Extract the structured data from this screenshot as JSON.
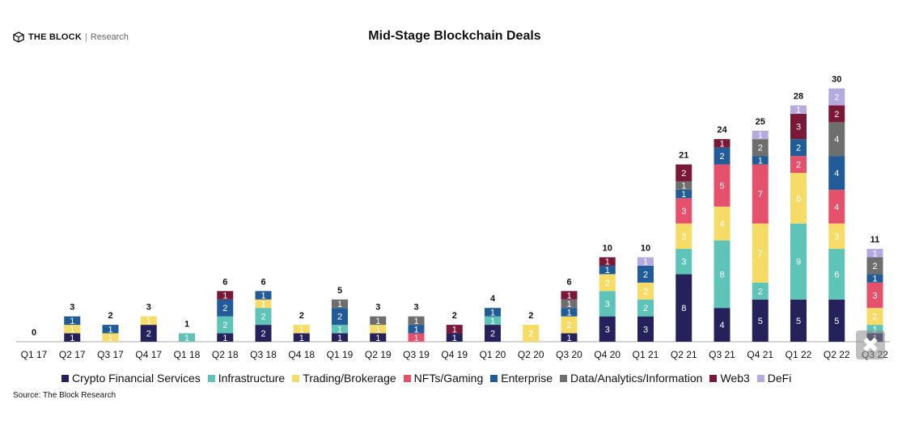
{
  "brand": {
    "name": "THE BLOCK",
    "separator": "|",
    "sub": "Research",
    "icon": "cube-logo-icon"
  },
  "source": "Source: The Block Research",
  "chart_data": {
    "type": "bar",
    "stacked": true,
    "title": "Mid-Stage Blockchain Deals",
    "categories": [
      "Q1 17",
      "Q2 17",
      "Q3 17",
      "Q4 17",
      "Q1 18",
      "Q2 18",
      "Q3 18",
      "Q4 18",
      "Q1 19",
      "Q2 19",
      "Q3 19",
      "Q4 19",
      "Q1 20",
      "Q2 20",
      "Q3 20",
      "Q4 20",
      "Q1 21",
      "Q2 21",
      "Q3 21",
      "Q4 21",
      "Q1 22",
      "Q2 22",
      "Q3 22"
    ],
    "tick_labels": [
      "Q1 17",
      "Q2 17",
      "Q3 17",
      "Q4 17",
      "Q1 18",
      "Q2 18",
      "Q3 18",
      "Q4 18",
      "Q1 19",
      "Q2 19",
      "Q3 19",
      "Q4 19",
      "Q1 20",
      "Q2 20",
      "Q3 20",
      "Q4 20",
      "Q1 21",
      "Q2 21",
      "Q3 21",
      "Q4 21",
      "Q1 22",
      "Q2 22",
      "Q3 22"
    ],
    "totals": [
      0,
      3,
      2,
      3,
      1,
      6,
      6,
      2,
      5,
      3,
      3,
      2,
      4,
      2,
      6,
      10,
      10,
      21,
      24,
      25,
      28,
      30,
      11
    ],
    "ylim": [
      0,
      30
    ],
    "grid": false,
    "legend_position": "bottom",
    "series": [
      {
        "name": "Crypto Financial Services",
        "color": "#25215a",
        "values": [
          0,
          1,
          0,
          2,
          0,
          1,
          2,
          1,
          1,
          1,
          0,
          1,
          2,
          0,
          1,
          3,
          3,
          8,
          4,
          5,
          5,
          5,
          1
        ]
      },
      {
        "name": "Infrastructure",
        "color": "#5fc4b8",
        "values": [
          0,
          0,
          0,
          0,
          1,
          2,
          2,
          0,
          1,
          0,
          0,
          0,
          1,
          0,
          0,
          3,
          2,
          3,
          8,
          2,
          9,
          6,
          1
        ]
      },
      {
        "name": "Trading/Brokerage",
        "color": "#f6dc66",
        "values": [
          0,
          1,
          1,
          1,
          0,
          0,
          1,
          1,
          0,
          1,
          0,
          0,
          0,
          2,
          2,
          2,
          2,
          3,
          4,
          7,
          6,
          3,
          2
        ]
      },
      {
        "name": "NFTs/Gaming",
        "color": "#e5506a",
        "values": [
          0,
          0,
          0,
          0,
          0,
          0,
          0,
          0,
          0,
          0,
          1,
          0,
          0,
          0,
          0,
          0,
          0,
          3,
          5,
          7,
          2,
          4,
          3
        ]
      },
      {
        "name": "Enterprise",
        "color": "#215b98",
        "values": [
          0,
          1,
          1,
          0,
          0,
          2,
          1,
          0,
          2,
          0,
          1,
          0,
          1,
          0,
          1,
          1,
          2,
          1,
          2,
          1,
          2,
          4,
          1
        ]
      },
      {
        "name": "Data/Analytics/Information",
        "color": "#6e6e6e",
        "values": [
          0,
          0,
          0,
          0,
          0,
          0,
          0,
          0,
          1,
          1,
          1,
          0,
          0,
          0,
          1,
          0,
          0,
          1,
          0,
          2,
          0,
          4,
          2
        ]
      },
      {
        "name": "Web3",
        "color": "#7a1838",
        "values": [
          0,
          0,
          0,
          0,
          0,
          1,
          0,
          0,
          0,
          0,
          0,
          1,
          0,
          0,
          1,
          1,
          0,
          2,
          1,
          0,
          3,
          2,
          0
        ]
      },
      {
        "name": "DeFi",
        "color": "#b5aae0",
        "values": [
          0,
          0,
          0,
          0,
          0,
          0,
          0,
          0,
          0,
          0,
          0,
          0,
          0,
          0,
          0,
          0,
          1,
          0,
          0,
          1,
          1,
          2,
          1
        ]
      }
    ]
  }
}
